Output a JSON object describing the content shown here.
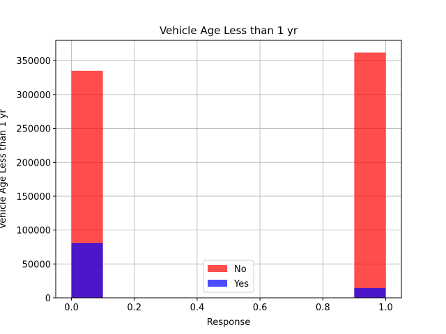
{
  "chart_data": {
    "type": "bar",
    "title": "Vehicle Age Less than 1 yr",
    "xlabel": "Response",
    "ylabel": "Vehicle Age Less than 1 yr",
    "xlim": [
      -0.05,
      1.05
    ],
    "ylim": [
      0,
      380000
    ],
    "x_ticks": [
      0.0,
      0.2,
      0.4,
      0.6,
      0.8,
      1.0
    ],
    "x_tick_labels": [
      "0.0",
      "0.2",
      "0.4",
      "0.6",
      "0.8",
      "1.0"
    ],
    "y_ticks": [
      0,
      50000,
      100000,
      150000,
      200000,
      250000,
      300000,
      350000
    ],
    "y_tick_labels": [
      "0",
      "50000",
      "100000",
      "150000",
      "200000",
      "250000",
      "300000",
      "350000"
    ],
    "grid": true,
    "legend_position": "bottom-center",
    "bar_width": 0.1,
    "series": [
      {
        "name": "No",
        "color": "#ff0000",
        "opacity": 0.7,
        "bars": [
          {
            "x_start": 0.0,
            "value": 335000
          },
          {
            "x_start": 0.9,
            "value": 362000
          }
        ]
      },
      {
        "name": "Yes",
        "color": "#0000ff",
        "opacity": 0.7,
        "bars": [
          {
            "x_start": 0.0,
            "value": 81000
          },
          {
            "x_start": 0.9,
            "value": 14500
          }
        ]
      }
    ]
  }
}
